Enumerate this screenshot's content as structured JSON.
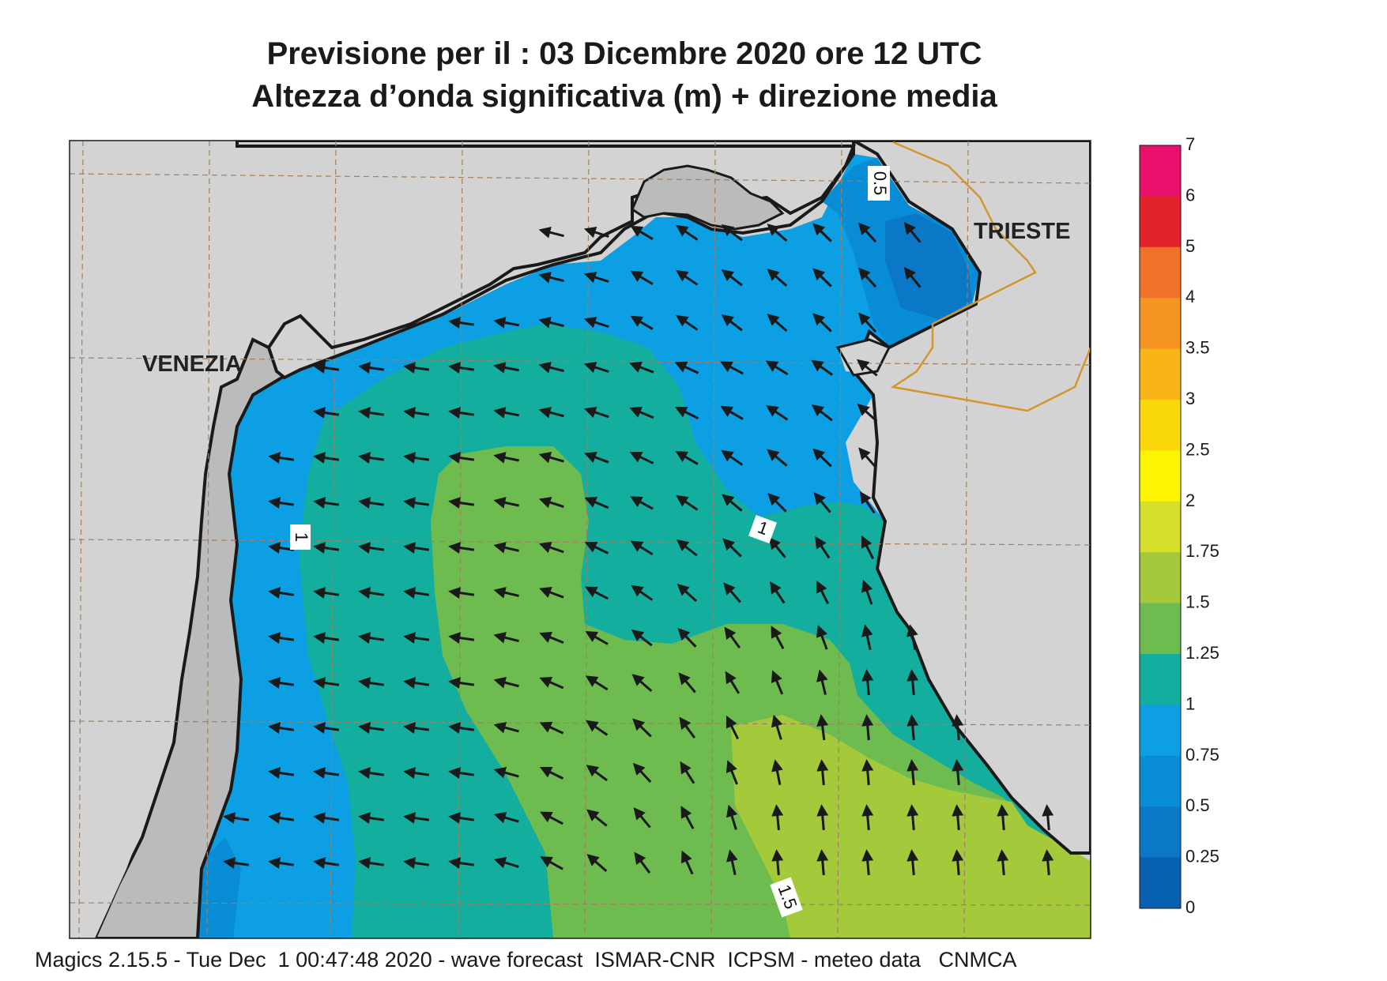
{
  "title_line1": "Previsione per il  :  03 Dicembre  2020   ore 12 UTC",
  "title_line2": "Altezza d’onda significativa (m) + direzione media",
  "footer": "Magics 2.15.5 - Tue Dec  1 00:47:48 2020 - wave forecast  ISMAR-CNR  ICPSM - meteo data   CNMCA",
  "cities": [
    {
      "name": "VENEZIA"
    },
    {
      "name": "TRIESTE"
    }
  ],
  "contour_labels": [
    "0.5",
    "1",
    "1",
    "1.5"
  ],
  "colorbar": {
    "labels": [
      "7",
      "6",
      "5",
      "4",
      "3.5",
      "3",
      "2.5",
      "2",
      "1.75",
      "1.5",
      "1.25",
      "1",
      "0.75",
      "0.5",
      "0.25",
      "0"
    ],
    "colors": [
      "#e8106a",
      "#e2232b",
      "#f07128",
      "#f59420",
      "#f8b418",
      "#fbd80c",
      "#fdf500",
      "#d6df2b",
      "#a4c93b",
      "#6ebc4f",
      "#13ae9e",
      "#0d9fe3",
      "#098cd6",
      "#0a78c6",
      "#075fb0"
    ]
  },
  "colors": {
    "land": "#d3d3d3",
    "coast_land": "#bbbbbb",
    "border": "#d4962c",
    "arrow": "#1a1a1a",
    "grid": "#a08060"
  },
  "legend_name": "wave-height-colorbar"
}
